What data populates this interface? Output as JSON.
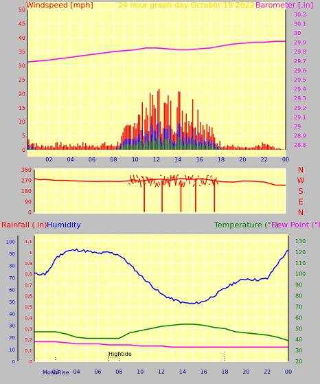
{
  "header": {
    "left_label": "Windspeed [mph]",
    "center_label": "24 hour graph day   October 19 2022",
    "right_label": "Barometer [.in]"
  },
  "colors": {
    "background": "#c0c0c0",
    "plot_bg": "#ffffa8",
    "wind": "#ff0000",
    "gust_blue": "#0000ff",
    "gust_green": "#008000",
    "barometer": "#ff00ff",
    "direction": "#ff0000",
    "humidity": "#0000ff",
    "temperature": "#008000",
    "dewpoint": "#ff00ff",
    "axis_text_red": "#ff0000",
    "axis_text_magenta": "#ff00ff",
    "grid": "#ffffff"
  },
  "x_hour_labels": [
    "02",
    "04",
    "06",
    "08",
    "10",
    "12",
    "14",
    "16",
    "18",
    "20",
    "22",
    "00"
  ],
  "wind_y_ticks": [
    "0",
    "5",
    "10",
    "15",
    "20",
    "25",
    "30",
    "35",
    "40",
    "45",
    "50"
  ],
  "baro_y_ticks": [
    "28.8",
    "28.9",
    "29",
    "29.1",
    "29.2",
    "29.3",
    "29.4",
    "29.5",
    "29.6",
    "29.7",
    "29.8",
    "29.9",
    "30",
    "30.1",
    "30.2"
  ],
  "dir_y_ticks": [
    "0",
    "90",
    "180",
    "270",
    "360"
  ],
  "dir_right_labels": [
    "N",
    "W",
    "S",
    "E",
    "N"
  ],
  "lower_labels": {
    "rainfall": "Rainfall (.in)",
    "humidity": "Humidity",
    "temperature": "Temperature (°F)",
    "dewpoint": "Dew Point (°F)"
  },
  "rain_y_ticks": [
    "0",
    "0.1",
    "0.2",
    "0.3",
    "0.4",
    "0.5",
    "0.6",
    "0.7",
    "0.8",
    "0.9",
    "1",
    "1.1"
  ],
  "hum_y_ticks": [
    "0",
    "10",
    "20",
    "30",
    "40",
    "50",
    "60",
    "70",
    "80",
    "90",
    "100"
  ],
  "temp_y_ticks": [
    "20",
    "30",
    "40",
    "50",
    "60",
    "70",
    "80",
    "90",
    "100",
    "110",
    "120",
    "130"
  ],
  "events": {
    "moonrise": "MoonRise",
    "moonrise_marker": "02",
    "hightide": "Hightide"
  },
  "chart_data": [
    {
      "type": "line",
      "x_unit": "hour",
      "xlim": [
        0,
        24
      ],
      "ylim_left": [
        0,
        50
      ],
      "ylim_right": [
        28.75,
        30.25
      ],
      "grid": true,
      "series": [
        {
          "name": "Windspeed [mph]",
          "axis": "left",
          "x": [
            0,
            1,
            2,
            3,
            4,
            5,
            6,
            7,
            8,
            8.5,
            9,
            9.5,
            10,
            10.5,
            11,
            11.5,
            12,
            12.5,
            13,
            13.5,
            14,
            14.5,
            15,
            15.5,
            16,
            16.5,
            17,
            17.5,
            18,
            19,
            20,
            21,
            22,
            23,
            24
          ],
          "values": [
            6,
            2,
            2,
            3,
            2,
            3,
            2,
            3,
            2,
            4,
            8,
            12,
            19,
            15,
            22,
            20,
            26,
            21,
            22,
            19,
            24,
            22,
            20,
            22,
            19,
            12,
            10,
            5,
            3,
            2,
            1,
            1,
            3,
            1,
            0
          ]
        },
        {
          "name": "Barometer [.in]",
          "axis": "right",
          "x": [
            0,
            2,
            4,
            6,
            8,
            10,
            11,
            12,
            13,
            14,
            15,
            16,
            17,
            18,
            19,
            20,
            21,
            22,
            23,
            24
          ],
          "values": [
            29.69,
            29.71,
            29.74,
            29.77,
            29.8,
            29.82,
            29.84,
            29.84,
            29.83,
            29.82,
            29.82,
            29.83,
            29.84,
            29.86,
            29.88,
            29.89,
            29.9,
            29.9,
            29.91,
            29.91
          ]
        }
      ]
    },
    {
      "type": "line",
      "x_unit": "hour",
      "xlim": [
        0,
        24
      ],
      "ylim": [
        0,
        360
      ],
      "series": [
        {
          "name": "Wind direction",
          "x": [
            0,
            0.5,
            1,
            2,
            3,
            4,
            5,
            6,
            7,
            8,
            9,
            9.5,
            10,
            11,
            12,
            13,
            14,
            15,
            16,
            17,
            18,
            19,
            20,
            21,
            22,
            23,
            24
          ],
          "values": [
            285,
            275,
            278,
            270,
            268,
            265,
            262,
            260,
            262,
            260,
            265,
            275,
            262,
            275,
            280,
            272,
            285,
            278,
            284,
            270,
            258,
            255,
            265,
            262,
            255,
            230,
            228
          ]
        }
      ]
    },
    {
      "type": "line",
      "x_unit": "hour",
      "xlim": [
        0,
        24
      ],
      "ylim_left": [
        0,
        100
      ],
      "ylim_right": [
        20,
        135
      ],
      "series": [
        {
          "name": "Humidity",
          "axis": "left",
          "x": [
            0,
            1,
            1.5,
            2,
            3,
            4,
            5,
            6,
            7,
            8,
            9,
            10,
            11,
            12,
            13,
            14,
            15,
            16,
            17,
            18,
            19,
            20,
            21,
            22,
            23,
            24
          ],
          "values": [
            73,
            73,
            77,
            86,
            92,
            93,
            92,
            90,
            91,
            89,
            81,
            72,
            64,
            56,
            52,
            49,
            48,
            50,
            55,
            61,
            66,
            69,
            68,
            69,
            82,
            93
          ]
        },
        {
          "name": "Temperature (°F)",
          "axis": "right",
          "x": [
            0,
            1,
            2,
            3,
            4,
            5,
            6,
            7,
            8,
            9,
            10,
            11,
            12,
            13,
            14,
            15,
            16,
            17,
            18,
            19,
            20,
            21,
            22,
            23,
            24
          ],
          "values": [
            47,
            47,
            47,
            45,
            42,
            41,
            41,
            41,
            41,
            46,
            48,
            50,
            52,
            53,
            54,
            54,
            53,
            51,
            50,
            47,
            46,
            45,
            44,
            42,
            39
          ]
        },
        {
          "name": "Dew Point (°F)",
          "axis": "right",
          "x": [
            0,
            1,
            2,
            3,
            4,
            5,
            6,
            7,
            8,
            9,
            10,
            11,
            12,
            13,
            14,
            15,
            16,
            17,
            18,
            19,
            20,
            21,
            22,
            23,
            24
          ],
          "values": [
            38,
            38,
            38,
            37,
            36,
            36,
            36,
            35,
            35,
            35,
            34,
            34,
            34,
            33,
            33,
            33,
            33,
            33,
            33,
            33,
            33,
            33,
            33,
            33,
            33
          ]
        }
      ]
    }
  ]
}
